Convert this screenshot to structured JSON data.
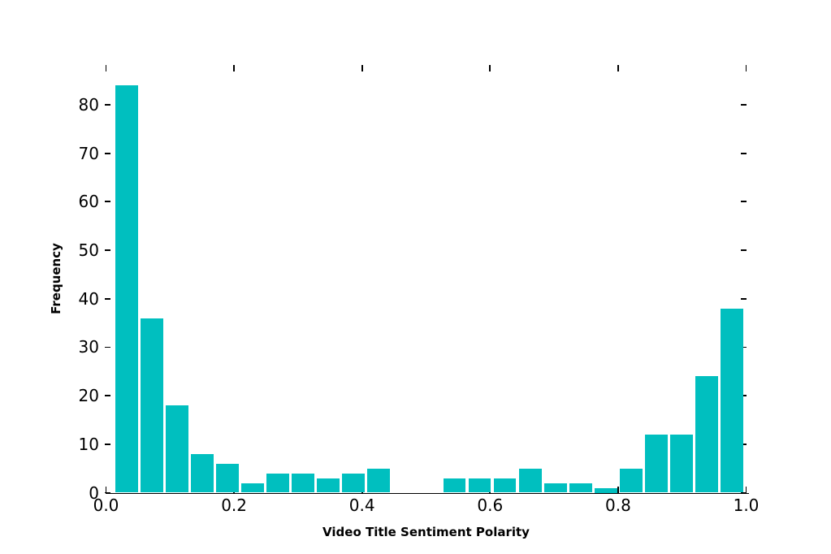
{
  "chart_data": {
    "type": "bar",
    "variant": "histogram",
    "title": "",
    "xlabel": "Video Title Sentiment Polarity",
    "ylabel": "Frequency",
    "bar_color": "#00BFBF",
    "axis_color": "#000000",
    "background_color": "#ffffff",
    "grid": false,
    "legend": false,
    "xlim": [
      0.0,
      1.0
    ],
    "ylim": [
      0,
      88.2
    ],
    "bins": {
      "start": 0.0125,
      "width": 0.0394,
      "rwidth": 0.9,
      "counts": [
        84,
        36,
        18,
        8,
        6,
        2,
        4,
        4,
        3,
        4,
        5,
        0,
        0,
        3,
        3,
        3,
        5,
        2,
        2,
        1,
        5,
        12,
        12,
        24,
        38
      ]
    },
    "x_tick_values": [
      0.0,
      0.2,
      0.4,
      0.6,
      0.8,
      1.0
    ],
    "x_tick_labels": [
      "0.0",
      "0.2",
      "0.4",
      "0.6",
      "0.8",
      "1.0"
    ],
    "y_tick_values": [
      0,
      10,
      20,
      30,
      40,
      50,
      60,
      70,
      80
    ],
    "y_tick_labels": [
      "0",
      "10",
      "20",
      "30",
      "40",
      "50",
      "60",
      "70",
      "80"
    ],
    "ticks_on_all_sides": true
  }
}
